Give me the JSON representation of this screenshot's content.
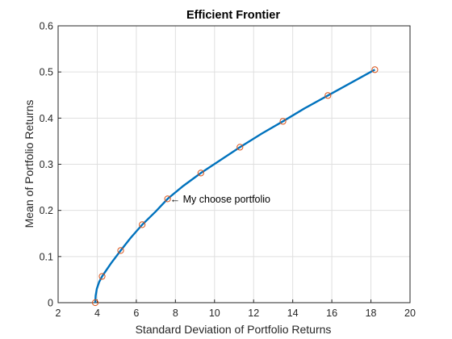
{
  "chart_data": {
    "type": "line",
    "title": "Efficient Frontier",
    "xlabel": "Standard Deviation of Portfolio Returns",
    "ylabel": "Mean of Portfolio Returns",
    "xlim": [
      2,
      20
    ],
    "ylim": [
      0,
      0.6
    ],
    "xticks": [
      2,
      4,
      6,
      8,
      10,
      12,
      14,
      16,
      18,
      20
    ],
    "yticks": [
      0,
      0.1,
      0.2,
      0.3,
      0.4,
      0.5,
      0.6
    ],
    "grid": true,
    "series": [
      {
        "kind": "line",
        "color": "#0072BD",
        "x": [
          3.9,
          3.92,
          3.98,
          4.1,
          4.25,
          4.7,
          5.2,
          5.7,
          6.3,
          7.0,
          7.6,
          8.4,
          9.3,
          10.3,
          11.3,
          12.4,
          13.5,
          14.6,
          15.8,
          17.0,
          18.2
        ],
        "y": [
          0.0,
          0.015,
          0.03,
          0.045,
          0.057,
          0.085,
          0.113,
          0.14,
          0.169,
          0.198,
          0.225,
          0.253,
          0.281,
          0.309,
          0.337,
          0.366,
          0.393,
          0.421,
          0.449,
          0.477,
          0.505
        ]
      },
      {
        "kind": "markers",
        "color": "#D95319",
        "x": [
          3.9,
          4.25,
          5.2,
          6.3,
          7.6,
          9.3,
          11.3,
          13.5,
          15.8,
          18.2
        ],
        "y": [
          0.0,
          0.057,
          0.113,
          0.169,
          0.225,
          0.281,
          0.337,
          0.393,
          0.449,
          0.505
        ]
      }
    ],
    "annotation": {
      "text": "← My choose portfolio",
      "x": 7.6,
      "y": 0.225
    }
  }
}
